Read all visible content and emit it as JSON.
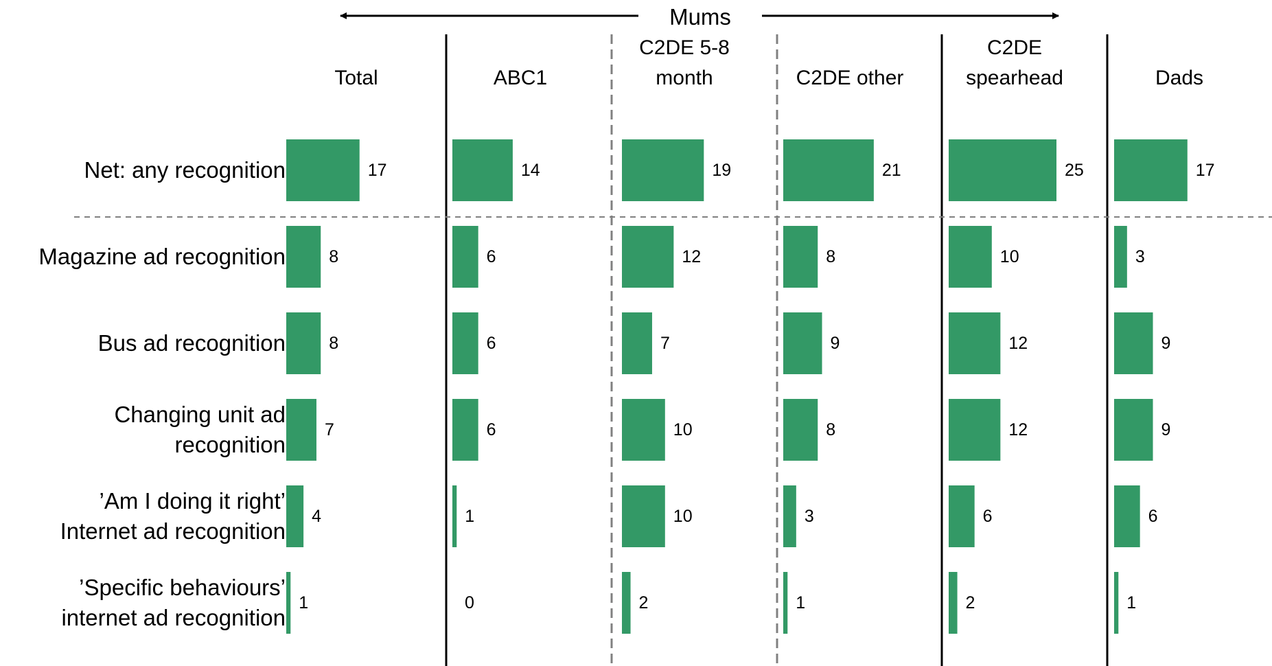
{
  "header": {
    "group_label": "Mums"
  },
  "chart_data": {
    "type": "bar",
    "orientation": "horizontal",
    "subtype": "small-multiples",
    "categories": [
      "Net: any recognition",
      "Magazine ad recognition",
      "Bus ad recognition",
      "Changing unit ad\nrecognition",
      "’Am I doing it right’\nInternet ad recognition",
      "’Specific behaviours’\ninternet ad recognition"
    ],
    "series": [
      {
        "name": "Total",
        "values": [
          17,
          8,
          8,
          7,
          4,
          1
        ]
      },
      {
        "name": "ABC1",
        "values": [
          14,
          6,
          6,
          6,
          1,
          0
        ]
      },
      {
        "name": "C2DE 5-8\nmonth",
        "values": [
          19,
          12,
          7,
          10,
          10,
          2
        ]
      },
      {
        "name": "C2DE other",
        "values": [
          21,
          8,
          9,
          8,
          3,
          1
        ]
      },
      {
        "name": "C2DE\nspearhead",
        "values": [
          25,
          10,
          12,
          12,
          6,
          2
        ]
      },
      {
        "name": "Dads",
        "values": [
          17,
          3,
          9,
          9,
          6,
          1
        ]
      }
    ],
    "bar_color": "#339966",
    "xlim": [
      0,
      25
    ],
    "grid": false,
    "legend": "none"
  }
}
